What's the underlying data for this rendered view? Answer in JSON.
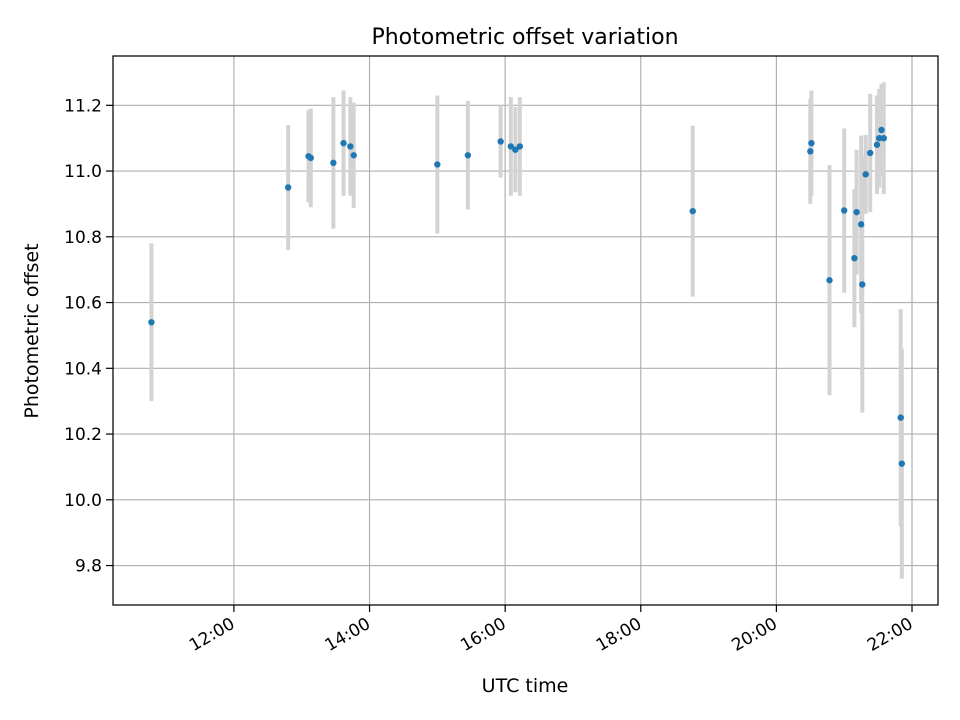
{
  "chart_data": {
    "type": "scatter",
    "title": "Photometric offset variation",
    "xlabel": "UTC time",
    "ylabel": "Photometric offset",
    "xlim": [
      "10:13",
      "22:23"
    ],
    "ylim": [
      9.68,
      11.35
    ],
    "x_ticks": [
      "12:00",
      "14:00",
      "16:00",
      "18:00",
      "20:00",
      "22:00"
    ],
    "y_ticks": [
      9.8,
      10.0,
      10.2,
      10.4,
      10.6,
      10.8,
      11.0,
      11.2
    ],
    "grid": true,
    "marker_color": "#1f77b4",
    "errorbar_color": "#d3d3d3",
    "points": [
      {
        "t": "10:47",
        "y": 10.54,
        "err": 0.24
      },
      {
        "t": "12:48",
        "y": 10.95,
        "err": 0.19
      },
      {
        "t": "13:06",
        "y": 11.045,
        "err": 0.14
      },
      {
        "t": "13:08",
        "y": 11.04,
        "err": 0.15
      },
      {
        "t": "13:28",
        "y": 11.025,
        "err": 0.2
      },
      {
        "t": "13:37",
        "y": 11.085,
        "err": 0.16
      },
      {
        "t": "13:43",
        "y": 11.075,
        "err": 0.15
      },
      {
        "t": "13:46",
        "y": 11.048,
        "err": 0.16
      },
      {
        "t": "15:00",
        "y": 11.02,
        "err": 0.21
      },
      {
        "t": "15:27",
        "y": 11.048,
        "err": 0.165
      },
      {
        "t": "15:56",
        "y": 11.09,
        "err": 0.11
      },
      {
        "t": "16:05",
        "y": 11.075,
        "err": 0.15
      },
      {
        "t": "16:09",
        "y": 11.065,
        "err": 0.13
      },
      {
        "t": "16:13",
        "y": 11.075,
        "err": 0.15
      },
      {
        "t": "18:46",
        "y": 10.878,
        "err": 0.26
      },
      {
        "t": "20:30",
        "y": 11.06,
        "err": 0.16
      },
      {
        "t": "20:31",
        "y": 11.085,
        "err": 0.16
      },
      {
        "t": "20:47",
        "y": 10.668,
        "err": 0.35
      },
      {
        "t": "21:00",
        "y": 10.88,
        "err": 0.25
      },
      {
        "t": "21:09",
        "y": 10.735,
        "err": 0.21
      },
      {
        "t": "21:11",
        "y": 10.875,
        "err": 0.19
      },
      {
        "t": "21:15",
        "y": 10.838,
        "err": 0.27
      },
      {
        "t": "21:16",
        "y": 10.655,
        "err": 0.39
      },
      {
        "t": "21:19",
        "y": 10.99,
        "err": 0.12
      },
      {
        "t": "21:23",
        "y": 11.055,
        "err": 0.18
      },
      {
        "t": "21:29",
        "y": 11.08,
        "err": 0.15
      },
      {
        "t": "21:31",
        "y": 11.1,
        "err": 0.15
      },
      {
        "t": "21:33",
        "y": 11.125,
        "err": 0.14
      },
      {
        "t": "21:35",
        "y": 11.1,
        "err": 0.17
      },
      {
        "t": "21:50",
        "y": 10.25,
        "err": 0.33
      },
      {
        "t": "21:51",
        "y": 10.11,
        "err": 0.35
      }
    ]
  }
}
